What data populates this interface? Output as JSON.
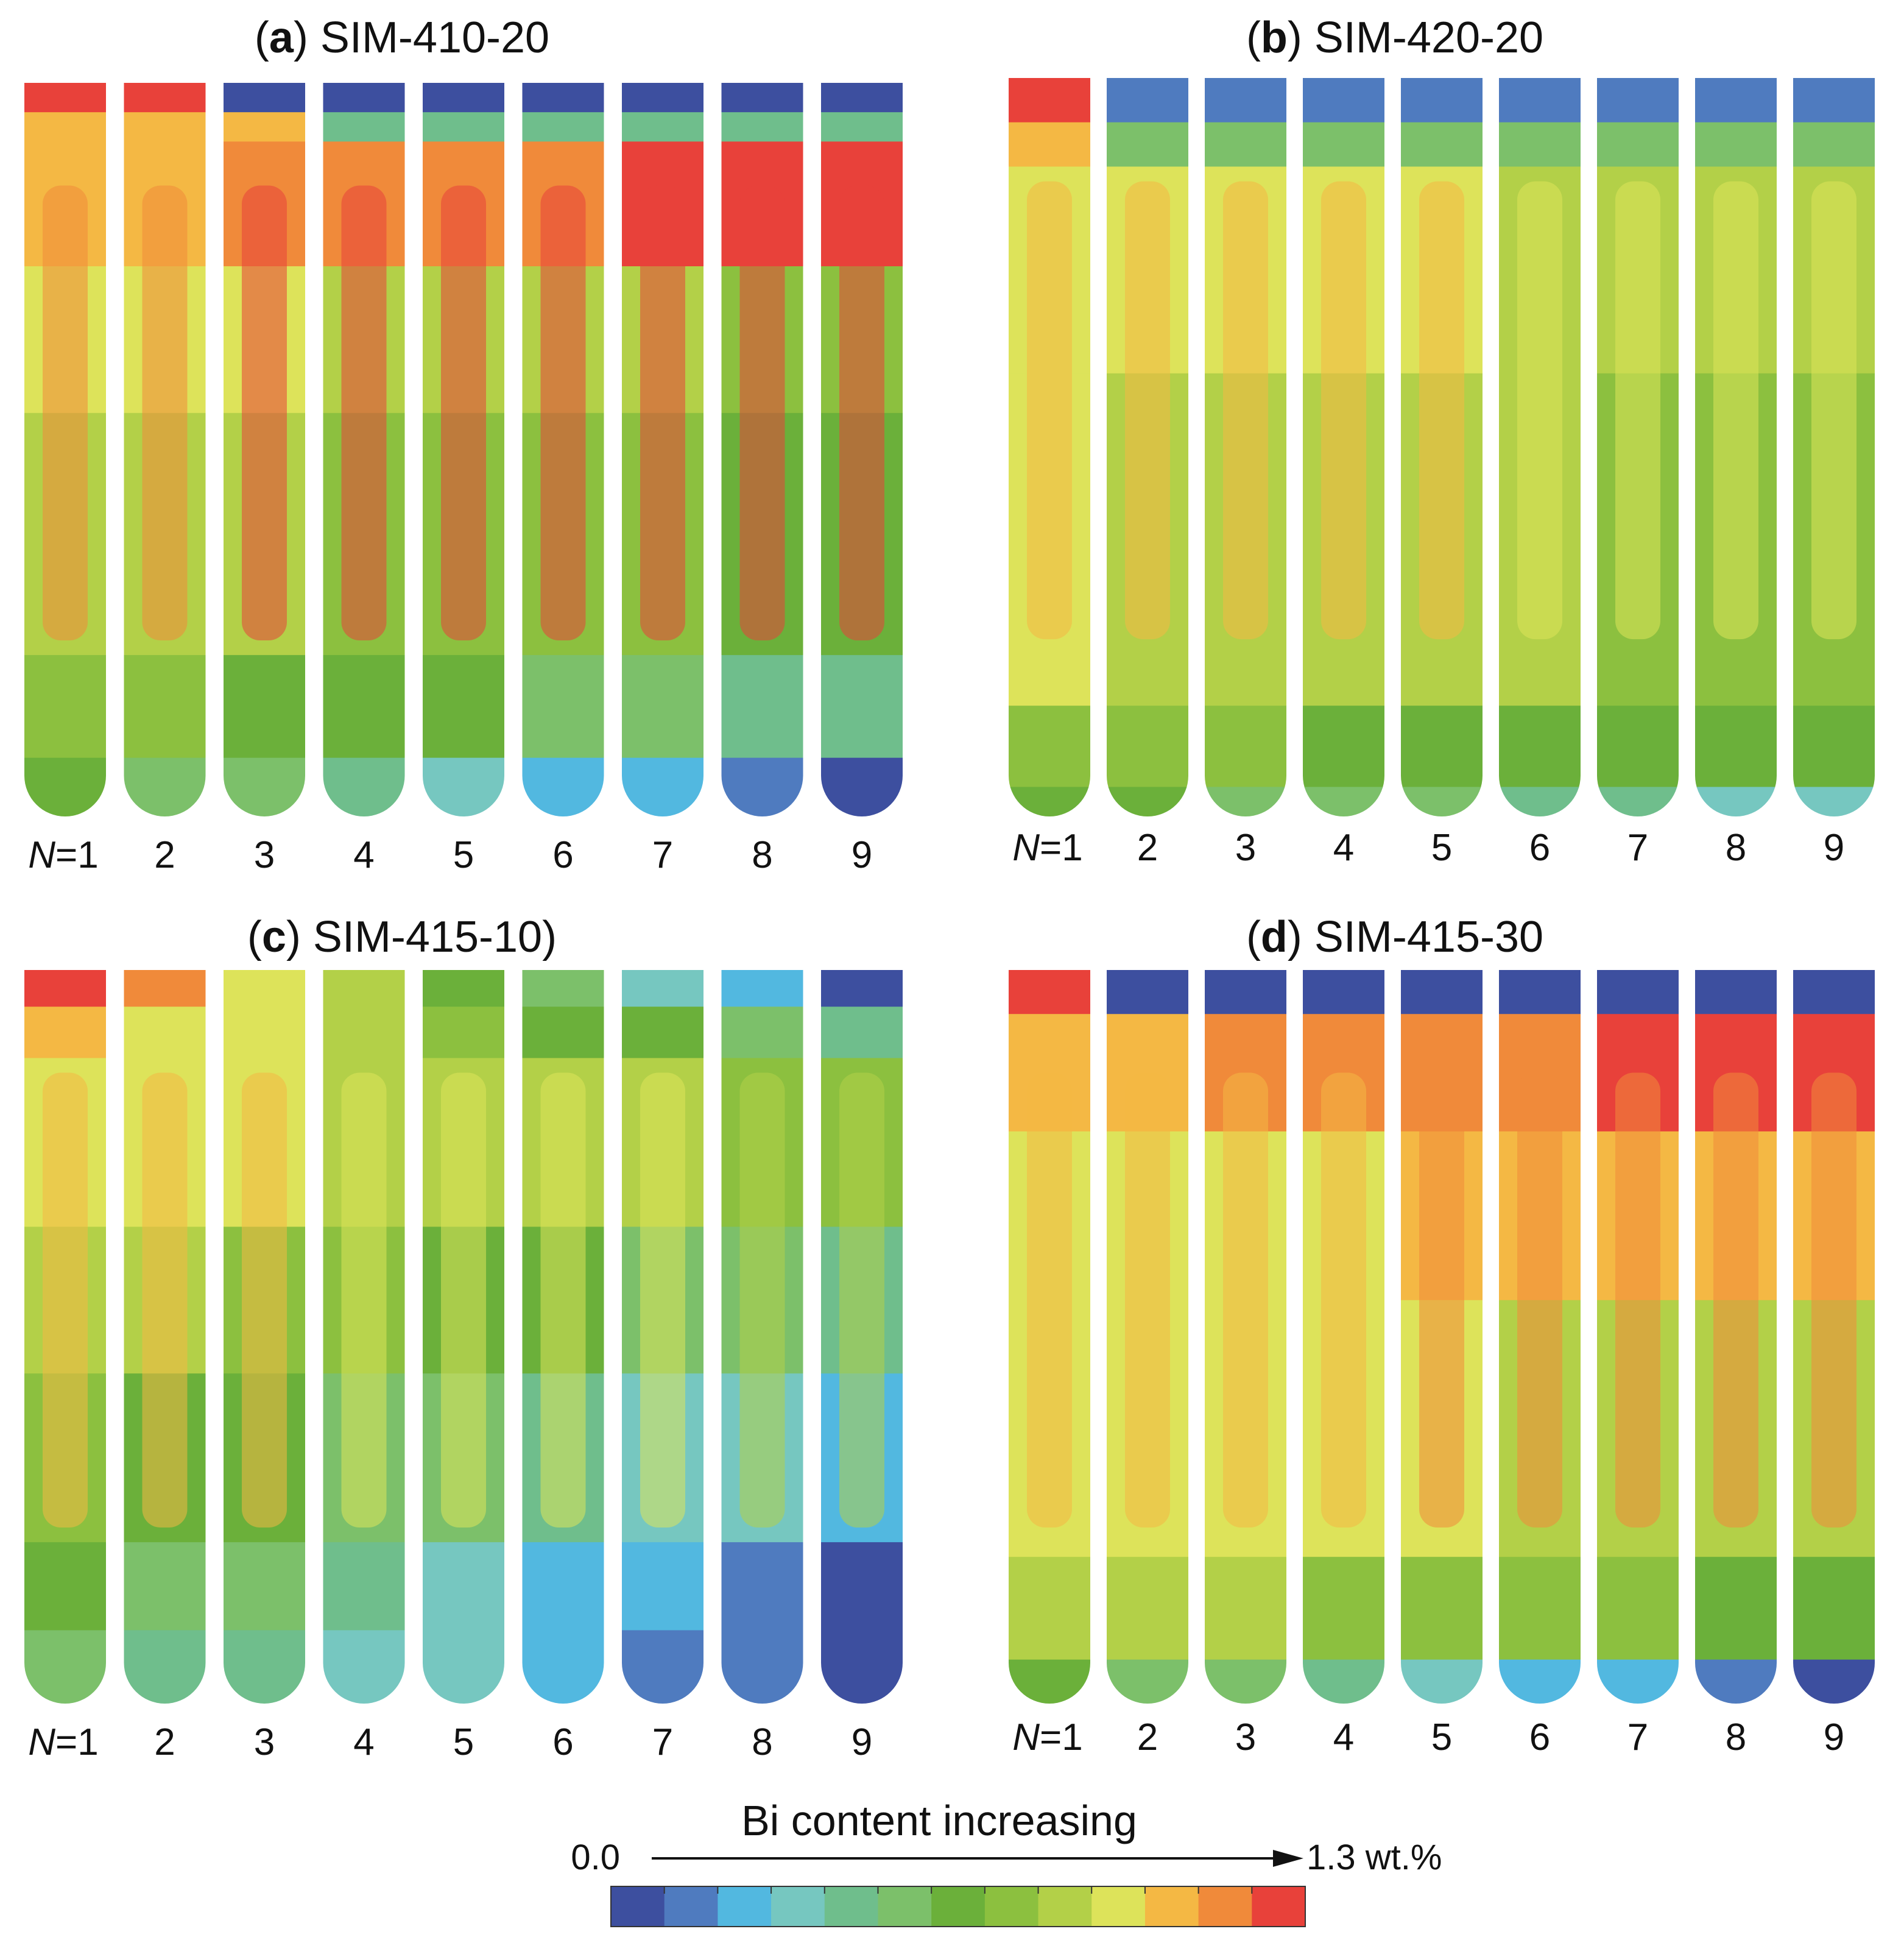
{
  "panels": [
    {
      "letter": "a",
      "name": "SIM-410-20",
      "suffix": "",
      "profile": "a"
    },
    {
      "letter": "b",
      "name": "SIM-420-20",
      "suffix": "",
      "profile": "b"
    },
    {
      "letter": "c",
      "name": "SIM-415-10",
      "suffix": ")",
      "profile": "c"
    },
    {
      "letter": "d",
      "name": "SIM-415-30",
      "suffix": "",
      "profile": "d"
    }
  ],
  "n_var": "N",
  "n_labels": [
    "=1",
    "2",
    "3",
    "4",
    "5",
    "6",
    "7",
    "8",
    "9"
  ],
  "legend": {
    "title": "Bi content increasing",
    "min_label": "0.0",
    "max_label": "1.3 wt.%",
    "colors": [
      "#3d4f9f",
      "#4f7bbf",
      "#52b8e0",
      "#76c7c0",
      "#6fbe8c",
      "#7cc06a",
      "#6bb03a",
      "#8cc03f",
      "#b3d048",
      "#dde35a",
      "#f4b844",
      "#f08a3a",
      "#e8413a"
    ]
  }
}
